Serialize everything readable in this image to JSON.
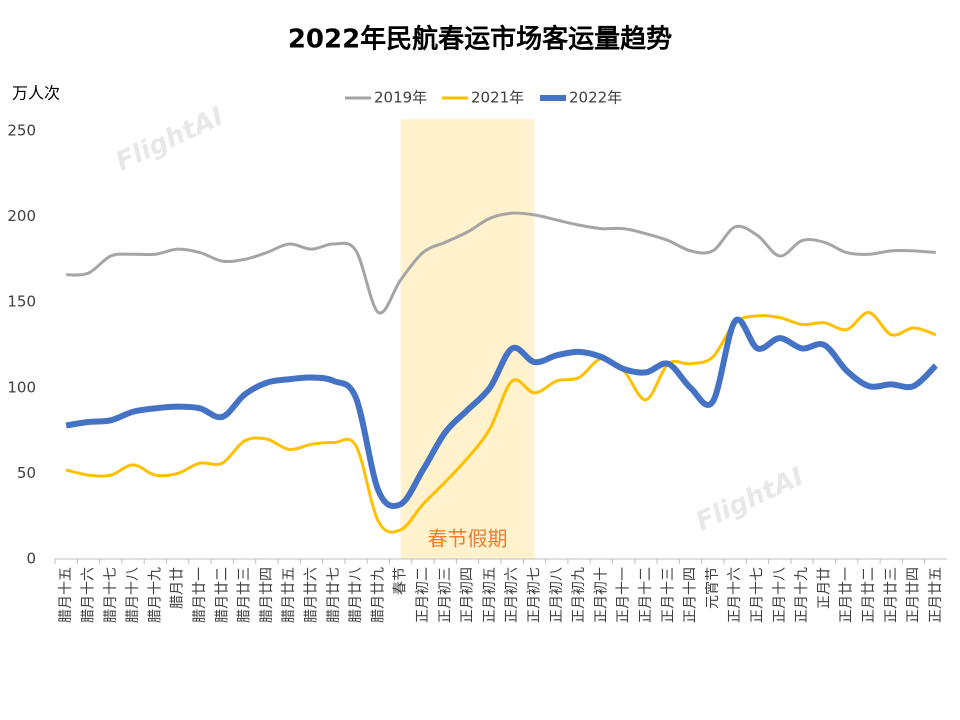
{
  "chart_data": {
    "type": "line",
    "title": "2022年民航春运市场客运量趋势",
    "y_label": "万人次",
    "watermark": "FlightAI",
    "categories": [
      "腊月十五",
      "腊月十六",
      "腊月十七",
      "腊月十八",
      "腊月十九",
      "腊月廿",
      "腊月廿一",
      "腊月廿二",
      "腊月廿三",
      "腊月廿四",
      "腊月廿五",
      "腊月廿六",
      "腊月廿七",
      "腊月廿八",
      "腊月廿九",
      "春节",
      "正月初二",
      "正月初三",
      "正月初四",
      "正月初五",
      "正月初六",
      "正月初七",
      "正月初八",
      "正月初九",
      "正月初十",
      "正月十一",
      "正月十二",
      "正月十三",
      "正月十四",
      "元宵节",
      "正月十六",
      "正月十七",
      "正月十八",
      "正月十九",
      "正月廿",
      "正月廿一",
      "正月廿二",
      "正月廿三",
      "正月廿四",
      "正月廿五"
    ],
    "series": [
      {
        "name": "2019年",
        "color": "#a5a5a5",
        "width": 3,
        "values": [
          166,
          167,
          177,
          178,
          178,
          181,
          179,
          174,
          175,
          179,
          184,
          181,
          184,
          180,
          144,
          163,
          179,
          185,
          191,
          199,
          202,
          201,
          198,
          195,
          193,
          193,
          190,
          186,
          180,
          180,
          194,
          189,
          177,
          186,
          185,
          179,
          178,
          180,
          180,
          179
        ]
      },
      {
        "name": "2021年",
        "color": "#ffc000",
        "width": 3,
        "values": [
          52,
          49,
          49,
          55,
          49,
          50,
          56,
          56,
          69,
          70,
          64,
          67,
          68,
          66,
          22,
          17,
          32,
          45,
          59,
          76,
          104,
          97,
          104,
          106,
          117,
          110,
          93,
          114,
          114,
          118,
          138,
          142,
          141,
          137,
          138,
          134,
          144,
          131,
          135,
          131
        ]
      },
      {
        "name": "2022年",
        "color": "#4472c4",
        "width": 6,
        "values": [
          78,
          80,
          81,
          86,
          88,
          89,
          88,
          83,
          96,
          103,
          105,
          106,
          104,
          94,
          40,
          32,
          52,
          74,
          87,
          100,
          123,
          115,
          119,
          121,
          118,
          111,
          109,
          114,
          100,
          92,
          139,
          123,
          129,
          123,
          125,
          110,
          101,
          102,
          101,
          113
        ]
      }
    ],
    "band": {
      "label": "春节假期",
      "from": "春节",
      "to": "正月初七",
      "color": "#fff2cc"
    },
    "ylim": [
      0,
      250
    ],
    "yticks": [
      0,
      50,
      100,
      150,
      200,
      250
    ],
    "legend": "top"
  }
}
